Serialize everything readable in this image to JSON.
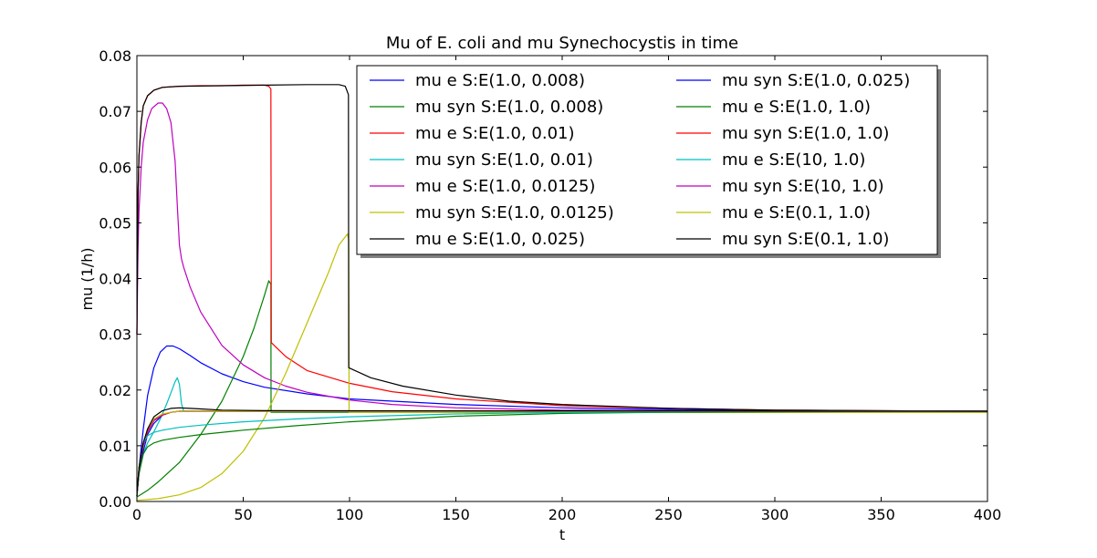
{
  "chart_data": {
    "type": "line",
    "title": "Mu of E. coli and mu Synechocystis in time",
    "xlabel": "t",
    "ylabel": "mu (1/h)",
    "xlim": [
      0,
      400
    ],
    "ylim": [
      0,
      0.08
    ],
    "xticks": [
      "0",
      "50",
      "100",
      "150",
      "200",
      "250",
      "300",
      "350",
      "400"
    ],
    "yticks": [
      "0.00",
      "0.01",
      "0.02",
      "0.03",
      "0.04",
      "0.05",
      "0.06",
      "0.07",
      "0.08"
    ],
    "legend_placement": "upper-center",
    "legend_columns": 2,
    "grid": false,
    "series": [
      {
        "name": "mu e S:E(1.0, 0.008)",
        "color": "#0000ff",
        "x": [
          0,
          1,
          3,
          5,
          8,
          11,
          14,
          17,
          20,
          25,
          30,
          40,
          50,
          60,
          80,
          100,
          150,
          200,
          250,
          300,
          400
        ],
        "y": [
          0.001,
          0.006,
          0.013,
          0.019,
          0.024,
          0.0268,
          0.0279,
          0.0279,
          0.0274,
          0.0262,
          0.0249,
          0.0229,
          0.0215,
          0.0205,
          0.0193,
          0.0184,
          0.0174,
          0.0168,
          0.0165,
          0.0163,
          0.0162
        ]
      },
      {
        "name": "mu syn S:E(1.0, 0.008)",
        "color": "#008000",
        "x": [
          0,
          5,
          10,
          20,
          30,
          40,
          50,
          55,
          60,
          62,
          63,
          63.1,
          64,
          400
        ],
        "y": [
          0.0008,
          0.002,
          0.0035,
          0.007,
          0.012,
          0.018,
          0.026,
          0.031,
          0.037,
          0.0396,
          0.039,
          0.016,
          0.016,
          0.016
        ]
      },
      {
        "name": "mu e S:E(1.0, 0.01)",
        "color": "#ff0000",
        "x": [
          0,
          0.5,
          1,
          2,
          3,
          5,
          8,
          12,
          20,
          30,
          40,
          50,
          60,
          62,
          63,
          63.2,
          70,
          80,
          100,
          120,
          150,
          200,
          250,
          300,
          400
        ],
        "y": [
          0.03,
          0.055,
          0.062,
          0.068,
          0.071,
          0.0728,
          0.0738,
          0.0743,
          0.0745,
          0.0746,
          0.0746,
          0.0747,
          0.0747,
          0.0745,
          0.074,
          0.0285,
          0.026,
          0.0235,
          0.0212,
          0.0197,
          0.0184,
          0.0172,
          0.0167,
          0.0164,
          0.0162
        ]
      },
      {
        "name": "mu syn S:E(1.0, 0.01)",
        "color": "#00bfbf",
        "x": [
          0,
          1,
          3,
          5,
          8,
          11,
          14,
          16,
          18,
          19,
          20,
          21,
          22,
          400
        ],
        "y": [
          0.001,
          0.005,
          0.0085,
          0.0105,
          0.0125,
          0.0148,
          0.0175,
          0.0195,
          0.0215,
          0.0222,
          0.021,
          0.0175,
          0.0162,
          0.0162
        ]
      },
      {
        "name": "mu e S:E(1.0, 0.0125)",
        "color": "#bf00bf",
        "x": [
          0,
          0.5,
          1,
          2,
          3,
          5,
          7,
          10,
          12,
          14,
          16,
          18,
          19,
          20,
          21,
          22,
          25,
          30,
          40,
          50,
          60,
          70,
          80,
          100,
          120,
          150,
          200,
          250,
          300,
          400
        ],
        "y": [
          0.03,
          0.045,
          0.052,
          0.06,
          0.0645,
          0.0685,
          0.0705,
          0.0715,
          0.0715,
          0.0705,
          0.068,
          0.061,
          0.053,
          0.046,
          0.0435,
          0.042,
          0.0385,
          0.034,
          0.028,
          0.0245,
          0.0222,
          0.0207,
          0.0196,
          0.0182,
          0.0174,
          0.0168,
          0.0164,
          0.0163,
          0.0162,
          0.0162
        ]
      },
      {
        "name": "mu syn S:E(1.0, 0.0125)",
        "color": "#bfbf00",
        "x": [
          0,
          10,
          20,
          30,
          40,
          50,
          60,
          70,
          80,
          90,
          95,
          99,
          99.6,
          99.8,
          400
        ],
        "y": [
          0.0002,
          0.0005,
          0.0012,
          0.0025,
          0.005,
          0.009,
          0.015,
          0.023,
          0.032,
          0.041,
          0.046,
          0.048,
          0.047,
          0.016,
          0.016
        ]
      },
      {
        "name": "mu e S:E(1.0, 0.025)",
        "color": "#000000",
        "x": [
          0,
          0.5,
          1,
          2,
          3,
          5,
          8,
          12,
          20,
          40,
          60,
          80,
          95,
          98,
          99.5,
          99.6,
          110,
          125,
          150,
          175,
          200,
          250,
          300,
          400
        ],
        "y": [
          0.03,
          0.055,
          0.062,
          0.068,
          0.071,
          0.0728,
          0.0738,
          0.0743,
          0.0745,
          0.0746,
          0.0747,
          0.0748,
          0.0748,
          0.0745,
          0.073,
          0.024,
          0.0222,
          0.0207,
          0.0191,
          0.018,
          0.0174,
          0.0167,
          0.0164,
          0.0162
        ]
      },
      {
        "name": "mu syn S:E(1.0, 0.025)",
        "color": "#0000ff",
        "x": [
          0,
          1,
          3,
          5,
          8,
          12,
          16,
          20,
          25,
          30,
          400
        ],
        "y": [
          0.001,
          0.005,
          0.009,
          0.012,
          0.014,
          0.0155,
          0.016,
          0.0162,
          0.0162,
          0.0162,
          0.0162
        ]
      },
      {
        "name": "mu e S:E(1.0, 1.0)",
        "color": "#008000",
        "x": [
          0,
          1,
          3,
          5,
          8,
          12,
          20,
          30,
          50,
          75,
          100,
          150,
          200,
          250,
          300,
          400
        ],
        "y": [
          0.001,
          0.005,
          0.0085,
          0.0098,
          0.0105,
          0.011,
          0.0115,
          0.012,
          0.0128,
          0.0136,
          0.0143,
          0.0153,
          0.0158,
          0.016,
          0.0161,
          0.0162
        ]
      },
      {
        "name": "mu syn S:E(1.0, 1.0)",
        "color": "#ff0000",
        "x": [
          0,
          1,
          3,
          5,
          8,
          12,
          16,
          20,
          30,
          400
        ],
        "y": [
          0.001,
          0.006,
          0.01,
          0.0125,
          0.0145,
          0.0155,
          0.016,
          0.0162,
          0.0162,
          0.0162
        ]
      },
      {
        "name": "mu e S:E(10, 1.0)",
        "color": "#00bfbf",
        "x": [
          0,
          1,
          3,
          5,
          8,
          12,
          20,
          30,
          50,
          75,
          100,
          150,
          200,
          250,
          300,
          400
        ],
        "y": [
          0.001,
          0.006,
          0.0105,
          0.0118,
          0.0124,
          0.0128,
          0.0133,
          0.0137,
          0.0143,
          0.0148,
          0.0152,
          0.0157,
          0.016,
          0.0161,
          0.0162,
          0.0162
        ]
      },
      {
        "name": "mu syn S:E(10, 1.0)",
        "color": "#bf00bf",
        "x": [
          0,
          1,
          3,
          5,
          8,
          12,
          16,
          20,
          30,
          400
        ],
        "y": [
          0.001,
          0.006,
          0.0105,
          0.0128,
          0.0146,
          0.0156,
          0.016,
          0.0162,
          0.0162,
          0.0162
        ]
      },
      {
        "name": "mu e S:E(0.1, 1.0)",
        "color": "#bfbf00",
        "x": [
          0,
          1,
          3,
          5,
          8,
          12,
          16,
          20,
          30,
          400
        ],
        "y": [
          0.001,
          0.006,
          0.0105,
          0.013,
          0.0148,
          0.0157,
          0.016,
          0.0162,
          0.0162,
          0.0162
        ]
      },
      {
        "name": "mu syn S:E(0.1, 1.0)",
        "color": "#000000",
        "x": [
          0,
          1,
          3,
          5,
          8,
          12,
          16,
          20,
          25,
          30,
          40,
          60,
          400
        ],
        "y": [
          0.001,
          0.006,
          0.0105,
          0.013,
          0.0152,
          0.0163,
          0.0167,
          0.0168,
          0.0167,
          0.0166,
          0.0164,
          0.0163,
          0.0162
        ]
      }
    ]
  }
}
